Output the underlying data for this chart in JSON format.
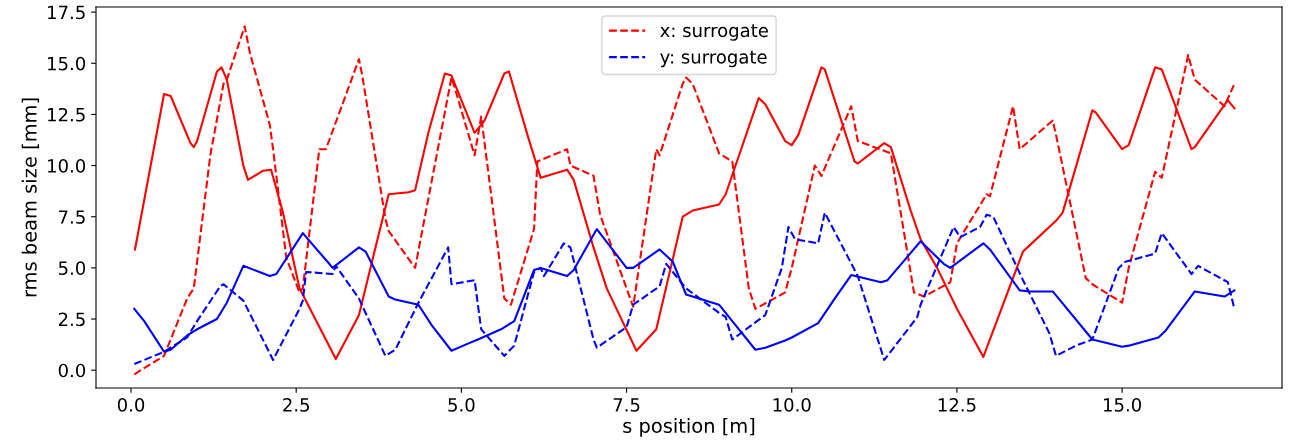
{
  "chart_data": {
    "type": "line",
    "xlabel": "s position [m]",
    "ylabel": "rms beam size [mm]",
    "xlim": [
      -0.53,
      17.42
    ],
    "ylim": [
      -0.87,
      17.75
    ],
    "xticks": [
      {
        "value": 0,
        "label": "0.0"
      },
      {
        "value": 2.5,
        "label": "2.5"
      },
      {
        "value": 5,
        "label": "5.0"
      },
      {
        "value": 7.5,
        "label": "7.5"
      },
      {
        "value": 10,
        "label": "10.0"
      },
      {
        "value": 12.5,
        "label": "12.5"
      },
      {
        "value": 15,
        "label": "15.0"
      }
    ],
    "yticks": [
      {
        "value": 0,
        "label": "0.0"
      },
      {
        "value": 2.5,
        "label": "2.5"
      },
      {
        "value": 5,
        "label": "5.0"
      },
      {
        "value": 7.5,
        "label": "7.5"
      },
      {
        "value": 10,
        "label": "10.0"
      },
      {
        "value": 12.5,
        "label": "12.5"
      },
      {
        "value": 15,
        "label": "15.0"
      },
      {
        "value": 17.5,
        "label": "17.5"
      }
    ],
    "grid": false,
    "legend": "top",
    "marker": "none",
    "series": [
      {
        "color": "#ff0000",
        "line_style": "solid",
        "x": [
          0.06,
          0.5,
          0.6,
          0.9,
          0.95,
          1.0,
          1.3,
          1.37,
          1.45,
          1.7,
          1.77,
          2.0,
          2.12,
          2.3,
          2.55,
          3.1,
          3.45,
          3.7,
          3.9,
          4.2,
          4.3,
          4.5,
          4.75,
          4.85,
          5.2,
          5.35,
          5.65,
          5.72,
          6.0,
          6.2,
          6.6,
          6.7,
          7.0,
          7.2,
          7.65,
          7.95,
          8.35,
          8.5,
          8.9,
          9.0,
          9.5,
          9.6,
          9.9,
          10.0,
          10.1,
          10.45,
          10.5,
          10.95,
          11.0,
          11.4,
          11.5,
          11.8,
          11.95,
          12.2,
          12.5,
          12.9,
          13.5,
          13.6,
          14.0,
          14.1,
          14.55,
          14.6,
          15.0,
          15.1,
          15.5,
          15.6,
          16.05,
          16.1,
          16.6,
          16.7
        ],
        "values": [
          5.9,
          13.5,
          13.4,
          11.1,
          10.9,
          11.2,
          14.6,
          14.8,
          14.2,
          10.0,
          9.3,
          9.75,
          9.8,
          7.7,
          4.0,
          0.55,
          2.7,
          6.0,
          8.6,
          8.7,
          8.8,
          11.6,
          14.5,
          14.4,
          11.6,
          12.2,
          14.5,
          14.6,
          11.5,
          9.4,
          9.8,
          9.3,
          6.0,
          4.0,
          0.95,
          2.0,
          7.5,
          7.8,
          8.1,
          8.6,
          13.3,
          13.0,
          11.2,
          11.0,
          11.5,
          14.8,
          14.7,
          10.2,
          10.1,
          11.1,
          10.9,
          7.8,
          6.4,
          5.0,
          3.0,
          0.65,
          5.8,
          6.1,
          7.3,
          7.7,
          12.7,
          12.6,
          10.8,
          11.0,
          14.8,
          14.7,
          10.8,
          10.9,
          13.2,
          12.8
        ]
      },
      {
        "name": "x: surrogate",
        "color": "#ff0000",
        "line_style": "dashed",
        "x": [
          0.05,
          0.5,
          0.85,
          0.95,
          1.2,
          1.4,
          1.45,
          1.72,
          1.8,
          2.1,
          2.15,
          2.35,
          2.55,
          2.6,
          2.85,
          2.95,
          3.45,
          3.5,
          3.85,
          3.9,
          4.3,
          4.85,
          4.9,
          5.2,
          5.3,
          5.65,
          5.75,
          6.1,
          6.15,
          6.6,
          6.65,
          7.0,
          7.1,
          7.6,
          7.95,
          8.0,
          8.35,
          8.4,
          8.5,
          8.9,
          9.1,
          9.35,
          9.45,
          9.9,
          10.0,
          10.35,
          10.45,
          10.9,
          11.0,
          11.5,
          11.85,
          12.0,
          12.4,
          12.5,
          12.95,
          13.0,
          13.35,
          13.45,
          13.95,
          14.0,
          14.45,
          14.55,
          15.0,
          15.1,
          15.5,
          15.6,
          16.0,
          16.1,
          16.55,
          16.7
        ],
        "values": [
          -0.2,
          0.7,
          3.5,
          4.0,
          10.5,
          14.0,
          14.2,
          16.8,
          15.5,
          12.0,
          10.8,
          5.5,
          3.8,
          4.0,
          10.8,
          10.8,
          15.2,
          14.4,
          7.4,
          6.8,
          5.0,
          14.3,
          13.8,
          10.5,
          12.4,
          3.5,
          3.2,
          6.9,
          10.2,
          10.8,
          10.0,
          9.5,
          7.6,
          3.1,
          10.8,
          10.5,
          14.0,
          14.3,
          14.0,
          10.6,
          10.2,
          4.0,
          3.0,
          3.8,
          5.0,
          10.0,
          9.5,
          12.9,
          11.2,
          10.6,
          3.8,
          3.6,
          4.3,
          6.2,
          8.6,
          8.5,
          12.9,
          10.8,
          12.2,
          11.5,
          4.5,
          4.2,
          3.3,
          5.0,
          9.7,
          9.4,
          15.4,
          14.2,
          12.9,
          14.0
        ]
      },
      {
        "color": "#0000ff",
        "line_style": "solid",
        "x": [
          0.05,
          0.2,
          0.5,
          0.6,
          0.85,
          1.0,
          1.3,
          1.45,
          1.7,
          2.1,
          2.2,
          2.6,
          3.0,
          3.05,
          3.45,
          3.55,
          3.9,
          4.0,
          4.35,
          4.55,
          4.85,
          5.1,
          5.25,
          5.6,
          5.8,
          6.1,
          6.2,
          6.6,
          6.7,
          7.05,
          7.5,
          7.6,
          8.0,
          8.2,
          8.4,
          8.9,
          9.1,
          9.45,
          9.6,
          9.9,
          10.0,
          10.4,
          10.65,
          10.9,
          11.35,
          11.45,
          11.95,
          12.3,
          12.4,
          12.9,
          13.0,
          13.45,
          13.6,
          13.95,
          14.55,
          15.0,
          15.1,
          15.55,
          15.65,
          16.1,
          16.55,
          16.7
        ],
        "values": [
          3.0,
          2.4,
          0.9,
          1.0,
          1.7,
          2.0,
          2.5,
          3.3,
          5.1,
          4.6,
          4.7,
          6.7,
          5.2,
          5.0,
          6.0,
          5.8,
          3.6,
          3.45,
          3.2,
          2.2,
          0.95,
          1.3,
          1.5,
          2.0,
          2.4,
          4.9,
          5.0,
          4.6,
          4.9,
          6.9,
          5.0,
          5.0,
          5.9,
          5.3,
          3.7,
          3.2,
          2.4,
          1.0,
          1.1,
          1.45,
          1.6,
          2.3,
          3.5,
          4.65,
          4.3,
          4.4,
          6.3,
          5.2,
          5.0,
          6.2,
          5.9,
          3.9,
          3.85,
          3.85,
          1.5,
          1.15,
          1.2,
          1.6,
          1.9,
          3.85,
          3.6,
          3.9
        ]
      },
      {
        "name": "y: surrogate",
        "color": "#0000ff",
        "line_style": "dashed",
        "x": [
          0.05,
          0.5,
          0.85,
          1.0,
          1.35,
          1.4,
          1.7,
          2.15,
          2.55,
          2.6,
          2.65,
          3.05,
          3.1,
          3.45,
          3.85,
          4.0,
          4.35,
          4.8,
          4.85,
          5.2,
          5.3,
          5.65,
          5.8,
          6.1,
          6.2,
          6.25,
          6.55,
          6.65,
          7.0,
          7.05,
          7.5,
          7.6,
          8.0,
          8.1,
          8.4,
          8.9,
          9.0,
          9.1,
          9.6,
          9.85,
          9.95,
          10.05,
          10.4,
          10.5,
          11.0,
          11.4,
          11.9,
          11.95,
          12.45,
          12.55,
          12.85,
          12.95,
          13.05,
          13.5,
          13.9,
          14.0,
          14.3,
          14.55,
          14.95,
          15.05,
          15.5,
          15.6,
          16.05,
          16.15,
          16.6,
          16.7
        ],
        "values": [
          0.3,
          0.9,
          1.6,
          2.4,
          4.1,
          4.2,
          3.4,
          0.5,
          3.0,
          3.4,
          4.8,
          4.7,
          5.1,
          3.5,
          0.7,
          1.0,
          3.3,
          6.0,
          4.2,
          4.4,
          2.0,
          0.7,
          1.2,
          4.8,
          5.0,
          4.6,
          6.2,
          6.0,
          1.5,
          1.1,
          2.1,
          3.2,
          4.1,
          5.2,
          4.0,
          2.8,
          2.6,
          1.5,
          2.7,
          5.0,
          7.0,
          6.4,
          6.2,
          7.7,
          4.6,
          0.5,
          2.6,
          3.2,
          7.0,
          6.5,
          7.0,
          7.6,
          7.5,
          4.4,
          1.8,
          0.7,
          1.2,
          1.5,
          5.0,
          5.3,
          5.7,
          6.7,
          4.7,
          5.1,
          4.3,
          3.0
        ]
      }
    ]
  }
}
